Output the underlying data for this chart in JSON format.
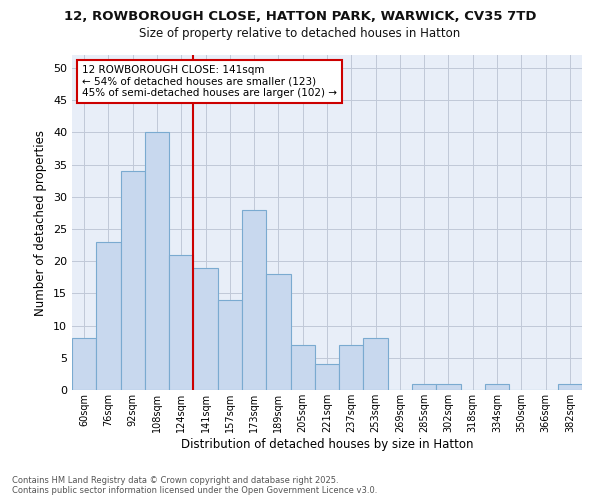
{
  "title": "12, ROWBOROUGH CLOSE, HATTON PARK, WARWICK, CV35 7TD",
  "subtitle": "Size of property relative to detached houses in Hatton",
  "xlabel": "Distribution of detached houses by size in Hatton",
  "ylabel": "Number of detached properties",
  "footer_line1": "Contains HM Land Registry data © Crown copyright and database right 2025.",
  "footer_line2": "Contains public sector information licensed under the Open Government Licence v3.0.",
  "annotation_line1": "12 ROWBOROUGH CLOSE: 141sqm",
  "annotation_line2": "← 54% of detached houses are smaller (123)",
  "annotation_line3": "45% of semi-detached houses are larger (102) →",
  "bar_color": "#c8d8ee",
  "bar_edge_color": "#7aaad0",
  "ref_line_color": "#cc0000",
  "annotation_box_color": "#cc0000",
  "fig_background_color": "#ffffff",
  "axes_background_color": "#e8eef8",
  "grid_color": "#c0c8d8",
  "bins": [
    "60sqm",
    "76sqm",
    "92sqm",
    "108sqm",
    "124sqm",
    "141sqm",
    "157sqm",
    "173sqm",
    "189sqm",
    "205sqm",
    "221sqm",
    "237sqm",
    "253sqm",
    "269sqm",
    "285sqm",
    "302sqm",
    "318sqm",
    "334sqm",
    "350sqm",
    "366sqm",
    "382sqm"
  ],
  "values": [
    8,
    23,
    34,
    40,
    21,
    19,
    14,
    28,
    18,
    7,
    4,
    7,
    8,
    0,
    1,
    1,
    0,
    1,
    0,
    0,
    1
  ],
  "ref_bin_index": 5,
  "ylim": [
    0,
    52
  ],
  "yticks": [
    0,
    5,
    10,
    15,
    20,
    25,
    30,
    35,
    40,
    45,
    50
  ]
}
